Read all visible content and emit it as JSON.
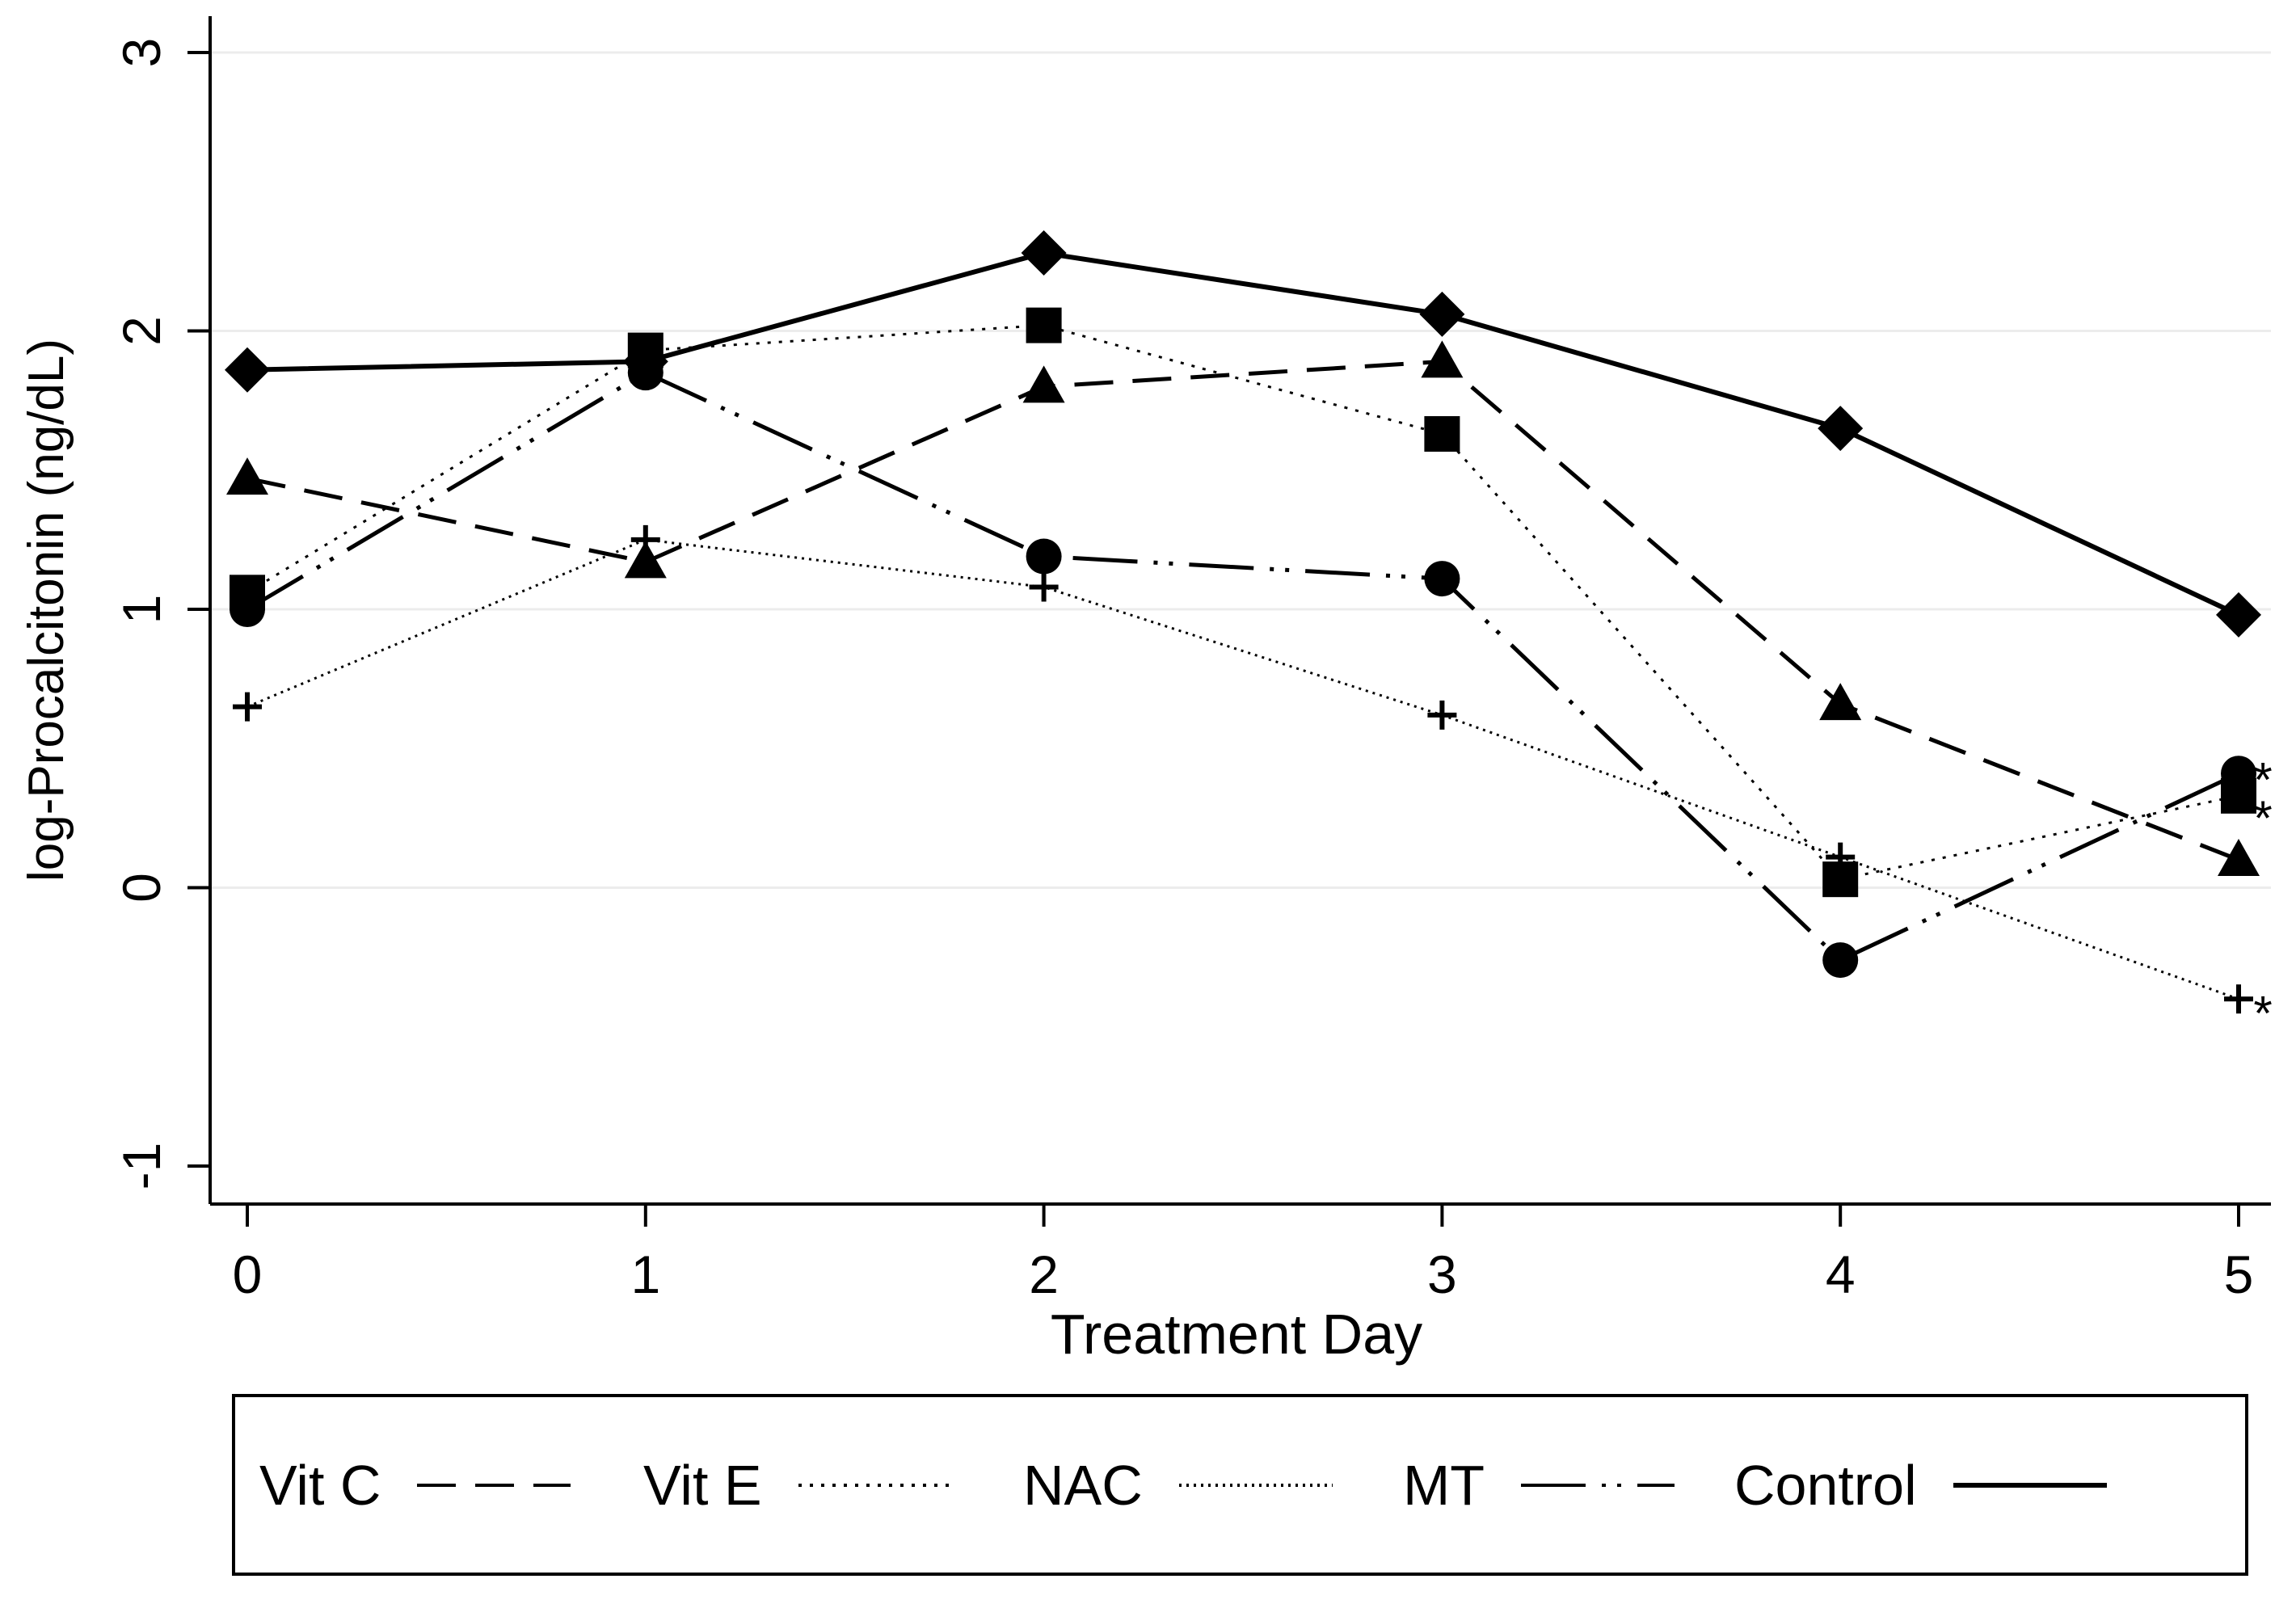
{
  "chart_data": {
    "type": "line",
    "title": "",
    "xlabel": "Treatment Day",
    "ylabel": "log-Procalcitonin (ng/dL)",
    "x": [
      0,
      1,
      2,
      3,
      4,
      5
    ],
    "xlim": [
      -0.1,
      5.1
    ],
    "ylim": [
      -1.15,
      3.1
    ],
    "x_ticks": [
      "0",
      "1",
      "2",
      "3",
      "4",
      "5"
    ],
    "y_ticks": [
      {
        "value": -1,
        "label": "-1"
      },
      {
        "value": 0,
        "label": "0"
      },
      {
        "value": 1,
        "label": "1"
      },
      {
        "value": 2,
        "label": "2"
      },
      {
        "value": 3,
        "label": "3"
      }
    ],
    "grid": true,
    "legend_position": "bottom",
    "series": [
      {
        "name": "Vit C",
        "values": [
          1.47,
          1.17,
          1.8,
          1.89,
          0.66,
          0.1
        ],
        "marker": "triangle",
        "line_style": "dashed",
        "significant_day5": false
      },
      {
        "name": "Vit E",
        "values": [
          1.06,
          1.93,
          2.02,
          1.63,
          0.03,
          0.33
        ],
        "marker": "square",
        "line_style": "dotted",
        "significant_day5": true
      },
      {
        "name": "NAC",
        "values": [
          0.65,
          1.25,
          1.08,
          0.62,
          0.11,
          -0.4
        ],
        "marker": "plus",
        "line_style": "dense-dotted",
        "significant_day5": true
      },
      {
        "name": "MT",
        "values": [
          1.0,
          1.85,
          1.19,
          1.11,
          -0.26,
          0.41
        ],
        "marker": "circle",
        "line_style": "long-dash-dot-dot",
        "significant_day5": true
      },
      {
        "name": "Control",
        "values": [
          1.86,
          1.89,
          2.28,
          2.06,
          1.65,
          0.98
        ],
        "marker": "diamond",
        "line_style": "solid",
        "significant_day5": false
      }
    ],
    "annotations": [
      "*",
      "*",
      "*"
    ],
    "colors": {
      "ink": "#000000",
      "grid": "#ececec",
      "background": "#ffffff"
    }
  }
}
